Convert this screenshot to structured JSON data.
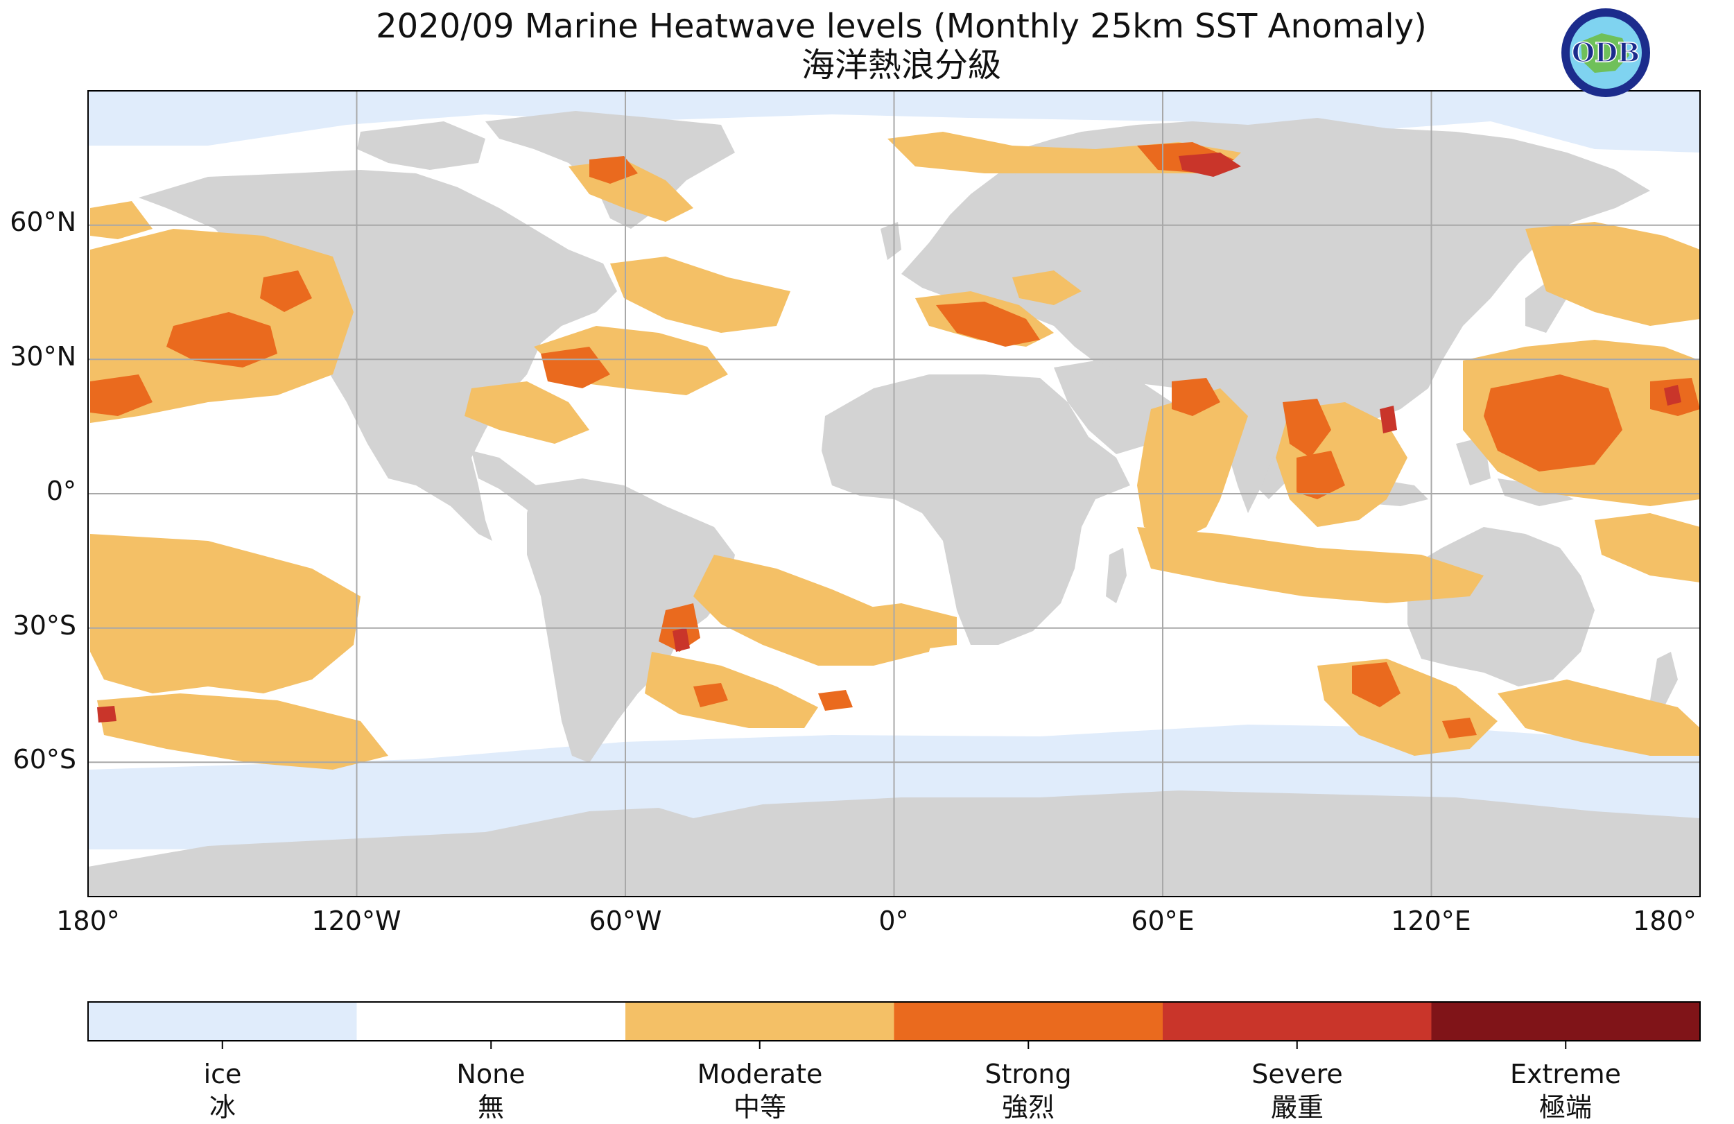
{
  "title": {
    "line1": "2020/09 Marine Heatwave levels (Monthly 25km SST Anomaly)",
    "line2": "海洋熱浪分級"
  },
  "logo": {
    "text": "ODB",
    "icon": "odb-globe-logo"
  },
  "map": {
    "projection": "plate-carree",
    "lon_range": [
      -180,
      180
    ],
    "lat_range": [
      -90,
      90
    ],
    "gridlines": true,
    "lat_labels": [
      {
        "lat": 60,
        "label": "60°N"
      },
      {
        "lat": 30,
        "label": "30°N"
      },
      {
        "lat": 0,
        "label": "0°"
      },
      {
        "lat": -30,
        "label": "30°S"
      },
      {
        "lat": -60,
        "label": "60°S"
      }
    ],
    "lon_labels": [
      {
        "lon": -180,
        "label": "180°"
      },
      {
        "lon": -120,
        "label": "120°W"
      },
      {
        "lon": -60,
        "label": "60°W"
      },
      {
        "lon": 0,
        "label": "0°"
      },
      {
        "lon": 60,
        "label": "60°E"
      },
      {
        "lon": 120,
        "label": "120°E"
      },
      {
        "lon": 180,
        "label": "180°"
      }
    ],
    "colors": {
      "land": "#d3d3d3",
      "ocean_none": "#ffffff",
      "grid": "#a8a8a8"
    }
  },
  "legend": {
    "levels": [
      {
        "en": "ice",
        "zh": "冰",
        "color": "#e0ecfb"
      },
      {
        "en": "None",
        "zh": "無",
        "color": "#ffffff"
      },
      {
        "en": "Moderate",
        "zh": "中等",
        "color": "#f4c066"
      },
      {
        "en": "Strong",
        "zh": "強烈",
        "color": "#ea6a1e"
      },
      {
        "en": "Severe",
        "zh": "嚴重",
        "color": "#c9352a"
      },
      {
        "en": "Extreme",
        "zh": "極端",
        "color": "#801418"
      }
    ]
  }
}
